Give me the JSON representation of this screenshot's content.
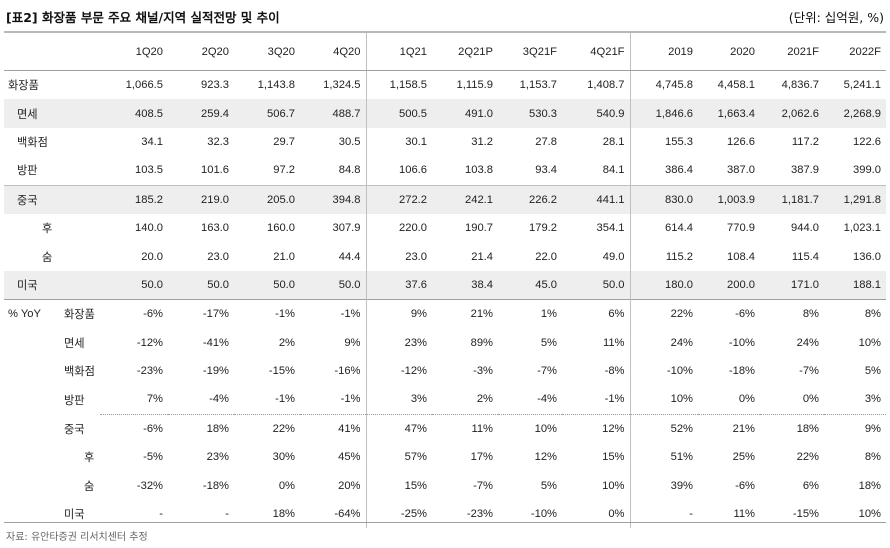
{
  "title": "[표2] 화장품 부문 주요 채널/지역 실적전망 및 추이",
  "unit": "(단위: 십억원, %)",
  "columns": [
    "1Q20",
    "2Q20",
    "3Q20",
    "4Q20",
    "1Q21",
    "2Q21P",
    "3Q21F",
    "4Q21F",
    "2019",
    "2020",
    "2021F",
    "2022F"
  ],
  "rows": [
    {
      "label": "화장품",
      "values": [
        "1,066.5",
        "923.3",
        "1,143.8",
        "1,324.5",
        "1,158.5",
        "1,115.9",
        "1,153.7",
        "1,408.7",
        "4,745.8",
        "4,458.1",
        "4,836.7",
        "5,241.1"
      ]
    },
    {
      "label": "면세",
      "values": [
        "408.5",
        "259.4",
        "506.7",
        "488.7",
        "500.5",
        "491.0",
        "530.3",
        "540.9",
        "1,846.6",
        "1,663.4",
        "2,062.6",
        "2,268.9"
      ]
    },
    {
      "label": "백화점",
      "values": [
        "34.1",
        "32.3",
        "29.7",
        "30.5",
        "30.1",
        "31.2",
        "27.8",
        "28.1",
        "155.3",
        "126.6",
        "117.2",
        "122.6"
      ]
    },
    {
      "label": "방판",
      "values": [
        "103.5",
        "101.6",
        "97.2",
        "84.8",
        "106.6",
        "103.8",
        "93.4",
        "84.1",
        "386.4",
        "387.0",
        "387.9",
        "399.0"
      ]
    },
    {
      "label": "중국",
      "values": [
        "185.2",
        "219.0",
        "205.0",
        "394.8",
        "272.2",
        "242.1",
        "226.2",
        "441.1",
        "830.0",
        "1,003.9",
        "1,181.7",
        "1,291.8"
      ]
    },
    {
      "label": "후",
      "values": [
        "140.0",
        "163.0",
        "160.0",
        "307.9",
        "220.0",
        "190.7",
        "179.2",
        "354.1",
        "614.4",
        "770.9",
        "944.0",
        "1,023.1"
      ]
    },
    {
      "label": "숨",
      "values": [
        "20.0",
        "23.0",
        "21.0",
        "44.4",
        "23.0",
        "21.4",
        "22.0",
        "49.0",
        "115.2",
        "108.4",
        "115.4",
        "136.0"
      ]
    },
    {
      "label": "미국",
      "values": [
        "50.0",
        "50.0",
        "50.0",
        "50.0",
        "37.6",
        "38.4",
        "45.0",
        "50.0",
        "180.0",
        "200.0",
        "171.0",
        "188.1"
      ]
    }
  ],
  "yoy_label": "% YoY",
  "yoy_rows": [
    {
      "label": "화장품",
      "values": [
        "-6%",
        "-17%",
        "-1%",
        "-1%",
        "9%",
        "21%",
        "1%",
        "6%",
        "22%",
        "-6%",
        "8%",
        "8%"
      ]
    },
    {
      "label": "면세",
      "values": [
        "-12%",
        "-41%",
        "2%",
        "9%",
        "23%",
        "89%",
        "5%",
        "11%",
        "24%",
        "-10%",
        "24%",
        "10%"
      ]
    },
    {
      "label": "백화점",
      "values": [
        "-23%",
        "-19%",
        "-15%",
        "-16%",
        "-12%",
        "-3%",
        "-7%",
        "-8%",
        "-10%",
        "-18%",
        "-7%",
        "5%"
      ]
    },
    {
      "label": "방판",
      "values": [
        "7%",
        "-4%",
        "-1%",
        "-1%",
        "3%",
        "2%",
        "-4%",
        "-1%",
        "10%",
        "0%",
        "0%",
        "3%"
      ]
    },
    {
      "label": "중국",
      "values": [
        "-6%",
        "18%",
        "22%",
        "41%",
        "47%",
        "11%",
        "10%",
        "12%",
        "52%",
        "21%",
        "18%",
        "9%"
      ]
    },
    {
      "label": "후",
      "values": [
        "-5%",
        "23%",
        "30%",
        "45%",
        "57%",
        "17%",
        "12%",
        "15%",
        "51%",
        "25%",
        "22%",
        "8%"
      ]
    },
    {
      "label": "숨",
      "values": [
        "-32%",
        "-18%",
        "0%",
        "20%",
        "15%",
        "-7%",
        "5%",
        "10%",
        "39%",
        "-6%",
        "6%",
        "18%"
      ]
    },
    {
      "label": "미국",
      "values": [
        "-",
        "-",
        "18%",
        "-64%",
        "-25%",
        "-23%",
        "-10%",
        "0%",
        "-",
        "11%",
        "-15%",
        "10%"
      ]
    }
  ],
  "source": "자료: 유안타증권 리서치센터 추정"
}
